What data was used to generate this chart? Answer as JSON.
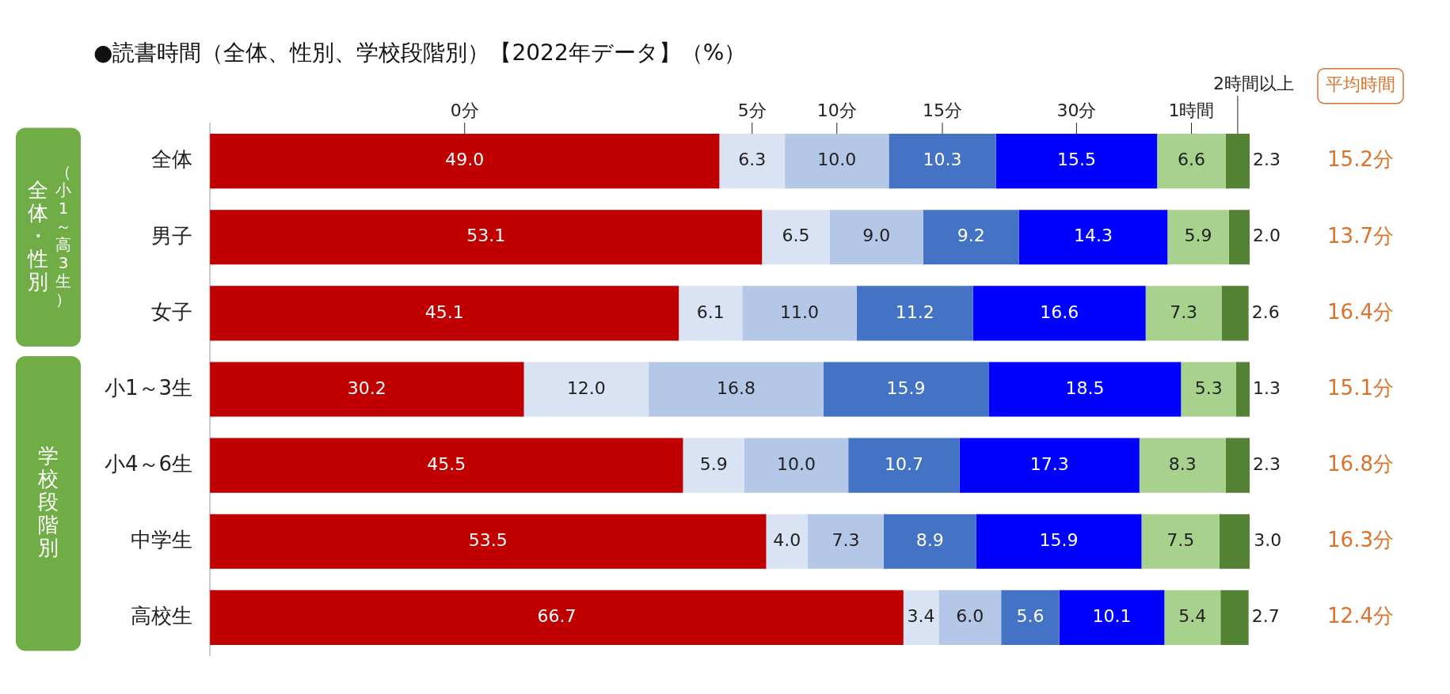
{
  "chart_data": {
    "type": "bar",
    "orientation": "horizontal",
    "stacked": true,
    "title": "●読書時間（全体、性別、学校段階別）【2022年データ】（%）",
    "categories": [
      "全体",
      "男子",
      "女子",
      "小1～3生",
      "小4～6生",
      "中学生",
      "高校生"
    ],
    "xlim": [
      0,
      100
    ],
    "tick_labels": "y",
    "grid": false,
    "series": [
      {
        "name": "0分",
        "color": "#c00000",
        "values": [
          49.0,
          53.1,
          45.1,
          30.2,
          45.5,
          53.5,
          66.7
        ],
        "value_labels": [
          "49.0",
          "53.1",
          "45.1",
          "30.2",
          "45.5",
          "53.5",
          "66.7"
        ]
      },
      {
        "name": "5分",
        "color": "#dae3f3",
        "values": [
          6.3,
          6.5,
          6.1,
          12.0,
          5.9,
          4.0,
          3.4
        ],
        "value_labels": [
          "6.3",
          "6.5",
          "6.1",
          "12.0",
          "5.9",
          "4.0",
          "3.4"
        ]
      },
      {
        "name": "10分",
        "color": "#b4c7e7",
        "values": [
          10.0,
          9.0,
          11.0,
          16.8,
          10.0,
          7.3,
          6.0
        ],
        "value_labels": [
          "10.0",
          "9.0",
          "11.0",
          "16.8",
          "10.0",
          "7.3",
          "6.0"
        ]
      },
      {
        "name": "15分",
        "color": "#4472c4",
        "values": [
          10.3,
          9.2,
          11.2,
          15.9,
          10.7,
          8.9,
          5.6
        ],
        "value_labels": [
          "10.3",
          "9.2",
          "11.2",
          "15.9",
          "10.7",
          "8.9",
          "5.6"
        ]
      },
      {
        "name": "30分",
        "color": "#0000ff",
        "values": [
          15.5,
          14.3,
          16.6,
          18.5,
          17.3,
          15.9,
          10.1
        ],
        "value_labels": [
          "15.5",
          "14.3",
          "16.6",
          "18.5",
          "17.3",
          "15.9",
          "10.1"
        ]
      },
      {
        "name": "1時間",
        "color": "#a9d18e",
        "values": [
          6.6,
          5.9,
          7.3,
          5.3,
          8.3,
          7.5,
          5.4
        ],
        "value_labels": [
          "6.6",
          "5.9",
          "7.3",
          "5.3",
          "8.3",
          "7.5",
          "5.4"
        ]
      },
      {
        "name": "2時間以上",
        "color": "#548235",
        "values": [
          2.3,
          2.0,
          2.6,
          1.3,
          2.3,
          3.0,
          2.7
        ],
        "value_labels": [
          "2.3",
          "2.0",
          "2.6",
          "1.3",
          "2.3",
          "3.0",
          "2.7"
        ]
      }
    ],
    "annotations": [
      "全体・性別",
      "（小1～高3生）",
      "学校段階別",
      "平均時間",
      "15.2分",
      "13.7分",
      "16.4分",
      "15.1分",
      "16.8分",
      "16.3分",
      "12.4分"
    ]
  }
}
